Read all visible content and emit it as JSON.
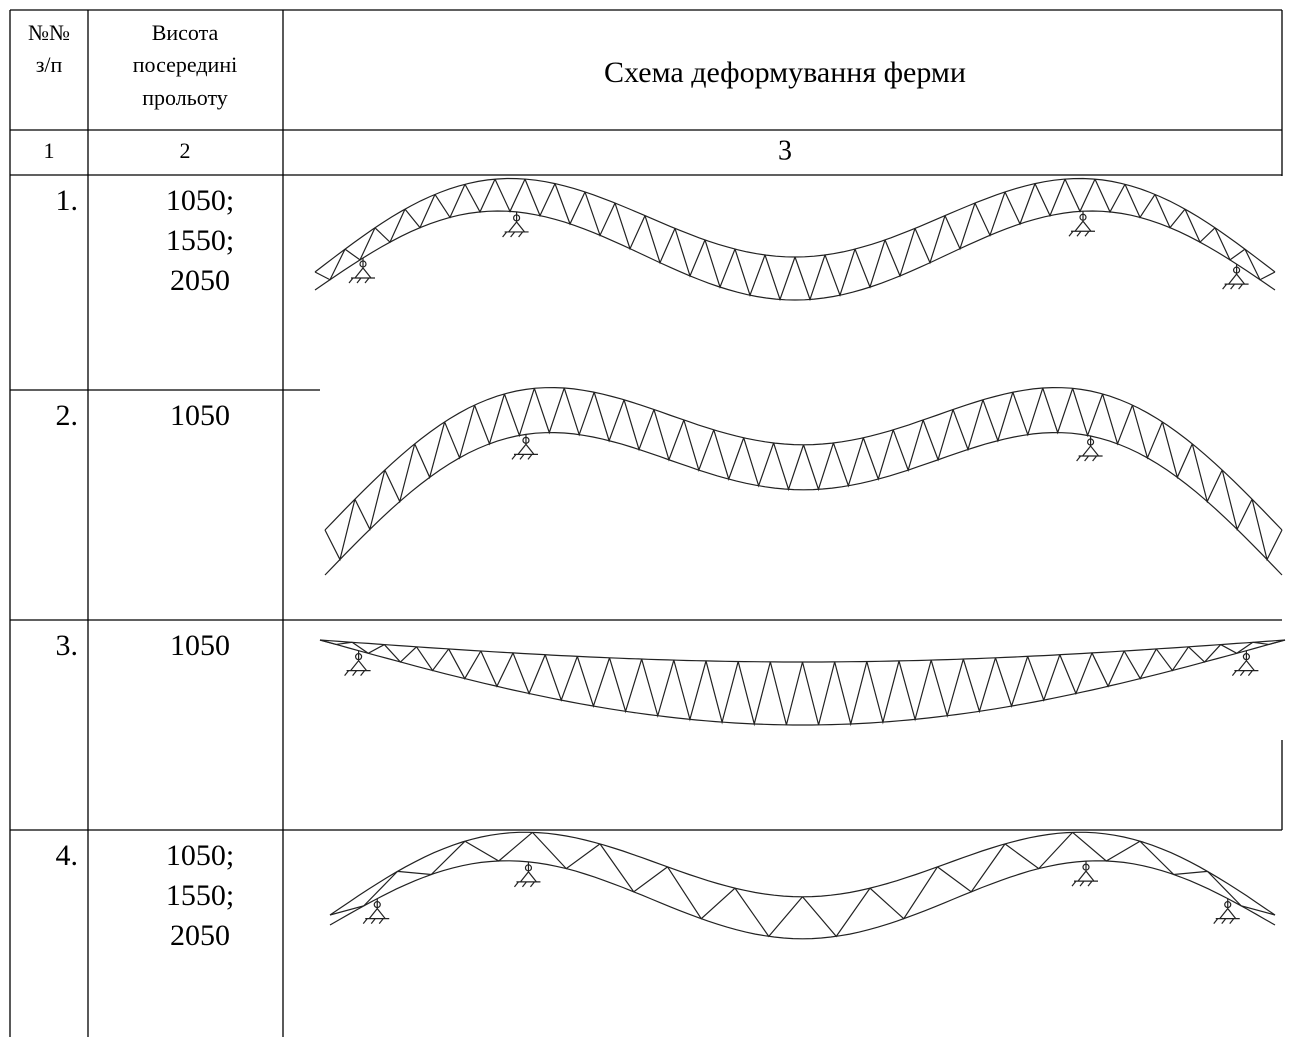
{
  "table": {
    "header": [
      [
        "№№",
        "з/п"
      ],
      [
        "Висота",
        "посередині",
        "прольоту"
      ],
      [
        "Схема деформування ферми"
      ]
    ],
    "numbering": [
      "1",
      "2",
      "3"
    ],
    "rows": [
      {
        "number": "1.",
        "height": [
          "1050;",
          "1550;",
          "2050"
        ]
      },
      {
        "number": "2.",
        "height": [
          "1050"
        ]
      },
      {
        "number": "3.",
        "height": [
          "1050"
        ]
      },
      {
        "number": "4.",
        "height": [
          "1050;",
          "1550;",
          "2050"
        ]
      }
    ]
  }
}
